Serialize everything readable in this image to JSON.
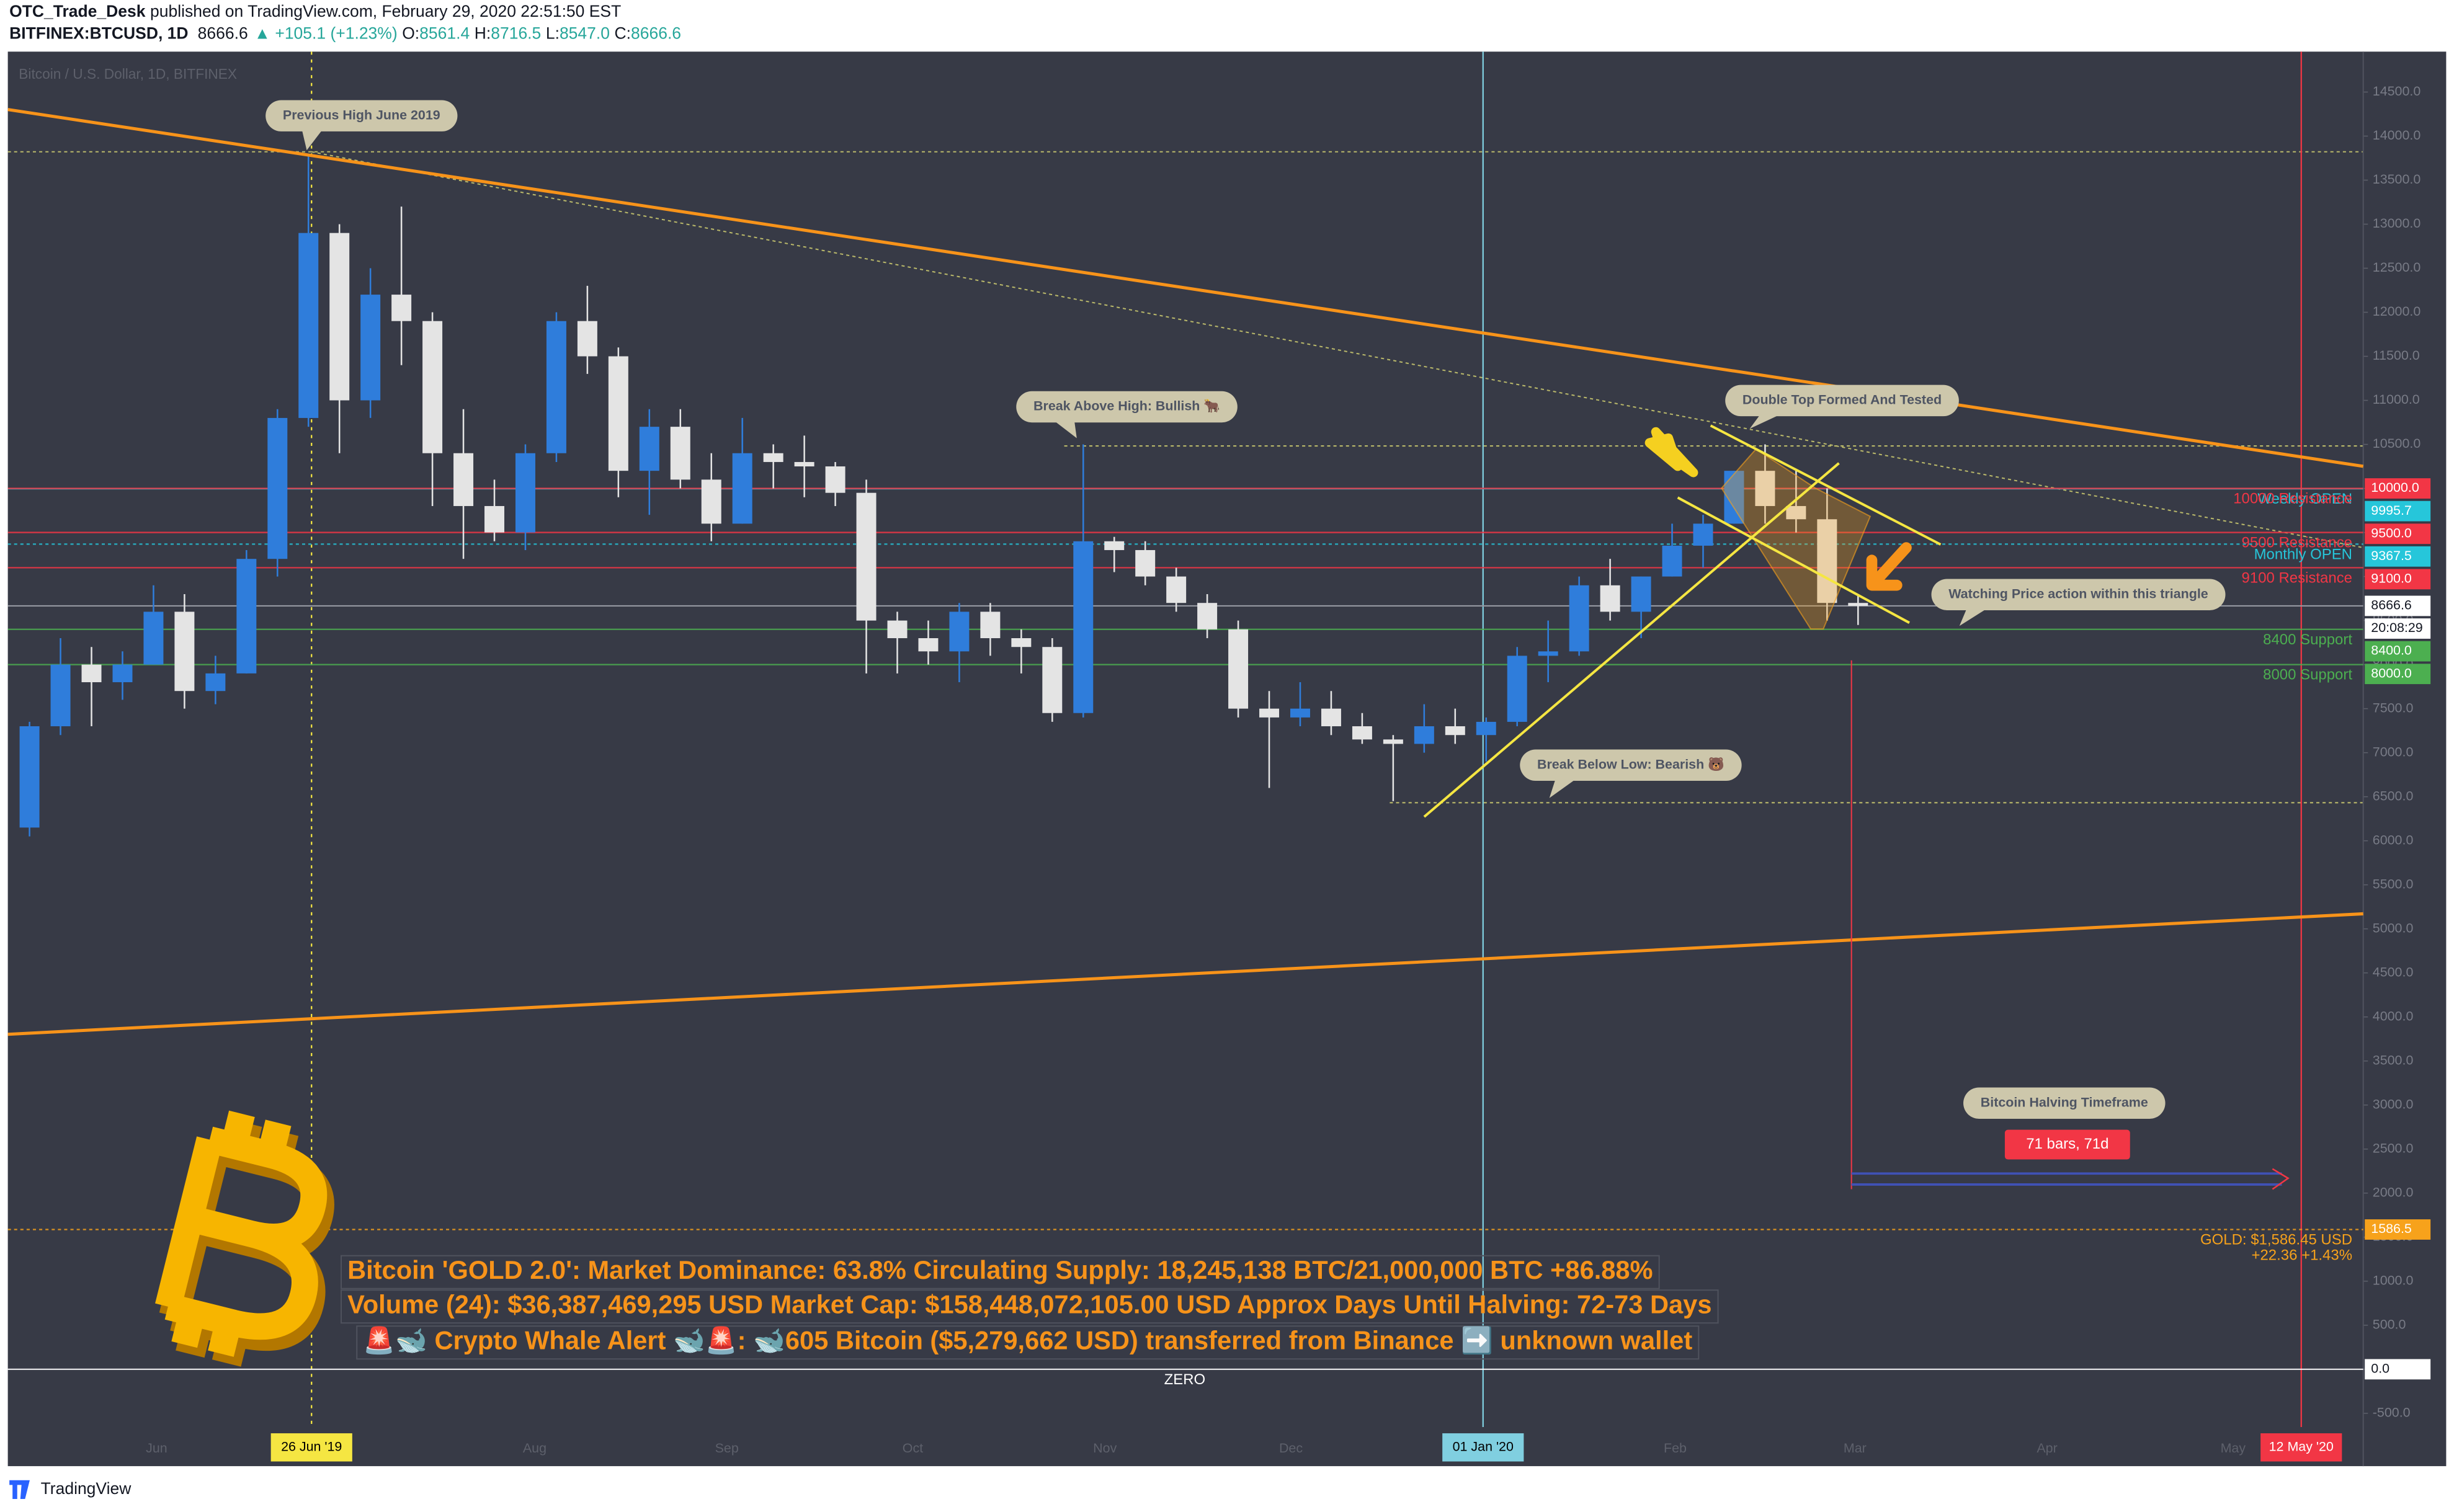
{
  "header": {
    "author": "OTC_Trade_Desk",
    "published": "published on TradingView.com, February 29, 2020 22:51:50 EST",
    "symbol": "BITFINEX:BTCUSD, 1D",
    "last": "8666.6",
    "change": "▲ +105.1 (+1.23%)",
    "ohlc": [
      {
        "label": "O:",
        "value": "8561.4"
      },
      {
        "label": "H:",
        "value": "8716.5"
      },
      {
        "label": "L:",
        "value": "8547.0"
      },
      {
        "label": "C:",
        "value": "8666.6"
      }
    ]
  },
  "chart_data": {
    "type": "candlestick",
    "watermark": "Bitcoin / U.S. Dollar, 1D, BITFINEX",
    "x": [
      "2019-05-09",
      "2019-05-14",
      "2019-05-19",
      "2019-05-24",
      "2019-05-29",
      "2019-06-03",
      "2019-06-08",
      "2019-06-13",
      "2019-06-18",
      "2019-06-23",
      "2019-06-28",
      "2019-07-03",
      "2019-07-08",
      "2019-07-13",
      "2019-07-18",
      "2019-07-23",
      "2019-07-28",
      "2019-08-02",
      "2019-08-07",
      "2019-08-12",
      "2019-08-17",
      "2019-08-22",
      "2019-08-27",
      "2019-09-01",
      "2019-09-06",
      "2019-09-11",
      "2019-09-16",
      "2019-09-21",
      "2019-09-26",
      "2019-10-01",
      "2019-10-06",
      "2019-10-11",
      "2019-10-16",
      "2019-10-21",
      "2019-10-26",
      "2019-10-31",
      "2019-11-05",
      "2019-11-10",
      "2019-11-15",
      "2019-11-20",
      "2019-11-25",
      "2019-11-30",
      "2019-12-05",
      "2019-12-10",
      "2019-12-15",
      "2019-12-20",
      "2019-12-25",
      "2019-12-30",
      "2020-01-04",
      "2020-01-09",
      "2020-01-14",
      "2020-01-19",
      "2020-01-24",
      "2020-01-29",
      "2020-02-03",
      "2020-02-08",
      "2020-02-13",
      "2020-02-18",
      "2020-02-23",
      "2020-02-28"
    ],
    "open": [
      6150,
      7300,
      8000,
      7800,
      8000,
      8600,
      7700,
      7900,
      9200,
      10800,
      12900,
      11000,
      12200,
      11900,
      10400,
      9800,
      9500,
      10400,
      11900,
      11500,
      10200,
      10700,
      10100,
      9600,
      10400,
      10300,
      10250,
      9950,
      8500,
      8300,
      8150,
      8600,
      8300,
      8200,
      7450,
      9400,
      9300,
      9000,
      8700,
      8400,
      7500,
      7400,
      7500,
      7300,
      7150,
      7100,
      7300,
      7200,
      7350,
      8100,
      8150,
      8900,
      8600,
      9000,
      9350,
      9600,
      10200,
      9800,
      9650,
      8700
    ],
    "high": [
      7350,
      8300,
      8200,
      8150,
      8900,
      8800,
      8100,
      9300,
      10900,
      13800,
      13000,
      12500,
      13200,
      12000,
      10900,
      10100,
      10500,
      12000,
      12300,
      11600,
      10900,
      10900,
      10400,
      10800,
      10500,
      10600,
      10300,
      10100,
      8600,
      8500,
      8700,
      8700,
      8400,
      8300,
      10500,
      9450,
      9400,
      9100,
      8800,
      8500,
      7700,
      7800,
      7700,
      7450,
      7200,
      7550,
      7500,
      7400,
      8200,
      8500,
      9000,
      9200,
      9000,
      9600,
      9700,
      10200,
      10500,
      10200,
      10000,
      8800
    ],
    "low": [
      6050,
      7200,
      7300,
      7600,
      8000,
      7500,
      7550,
      7900,
      9000,
      10700,
      10400,
      10800,
      11400,
      9800,
      9200,
      9400,
      9300,
      10300,
      11300,
      9900,
      9700,
      10000,
      9400,
      9600,
      10000,
      9900,
      9800,
      7900,
      7900,
      8000,
      7800,
      8100,
      7900,
      7350,
      7400,
      9050,
      8900,
      8600,
      8300,
      7400,
      6600,
      7300,
      7200,
      7100,
      6450,
      7000,
      7100,
      6900,
      7300,
      7800,
      8100,
      8500,
      8300,
      9000,
      9100,
      9600,
      9600,
      9500,
      8500,
      8450
    ],
    "close": [
      7300,
      8000,
      7800,
      8000,
      8600,
      7700,
      7900,
      9200,
      10800,
      12900,
      11000,
      12200,
      11900,
      10400,
      9800,
      9500,
      10400,
      11900,
      11500,
      10200,
      10700,
      10100,
      9600,
      10400,
      10300,
      10250,
      9950,
      8500,
      8300,
      8150,
      8600,
      8300,
      8200,
      7450,
      9400,
      9300,
      9000,
      8700,
      8400,
      7500,
      7400,
      7500,
      7300,
      7150,
      7100,
      7300,
      7200,
      7350,
      8100,
      8150,
      8900,
      8600,
      9000,
      9350,
      9600,
      10200,
      9800,
      9650,
      8700,
      8666.6
    ],
    "up_color": "#2f7ddb",
    "down_color": "#e4e4e4",
    "xlim": [
      "2019-05-08",
      "2020-05-22"
    ],
    "xticks": [
      {
        "value": "2019-06-01",
        "label": "Jun"
      },
      {
        "value": "2019-08-01",
        "label": "Aug"
      },
      {
        "value": "2019-09-01",
        "label": "Sep"
      },
      {
        "value": "2019-10-01",
        "label": "Oct"
      },
      {
        "value": "2019-11-01",
        "label": "Nov"
      },
      {
        "value": "2019-12-01",
        "label": "Dec"
      },
      {
        "value": "2020-02-01",
        "label": "Feb"
      },
      {
        "value": "2020-03-01",
        "label": "Mar"
      },
      {
        "value": "2020-04-01",
        "label": "Apr"
      },
      {
        "value": "2020-05-01",
        "label": "May"
      }
    ],
    "ylim": [
      -1100,
      14870
    ],
    "yticks": [
      {
        "value": -500,
        "label": "-500.0"
      },
      {
        "value": 0,
        "label": "0.0"
      },
      {
        "value": 500,
        "label": "500.0"
      },
      {
        "value": 1000,
        "label": "1000.0"
      },
      {
        "value": 1500,
        "label": "1500.0"
      },
      {
        "value": 2000,
        "label": "2000.0"
      },
      {
        "value": 2500,
        "label": "2500.0"
      },
      {
        "value": 3000,
        "label": "3000.0"
      },
      {
        "value": 3500,
        "label": "3500.0"
      },
      {
        "value": 4000,
        "label": "4000.0"
      },
      {
        "value": 4500,
        "label": "4500.0"
      },
      {
        "value": 5000,
        "label": "5000.0"
      },
      {
        "value": 5500,
        "label": "5500.0"
      },
      {
        "value": 6000,
        "label": "6000.0"
      },
      {
        "value": 6500,
        "label": "6500.0"
      },
      {
        "value": 7000,
        "label": "7000.0"
      },
      {
        "value": 7500,
        "label": "7500.0"
      },
      {
        "value": 8000,
        "label": "8000.0"
      },
      {
        "value": 8500,
        "label": "8500.0"
      },
      {
        "value": 9000,
        "label": "9000.0"
      },
      {
        "value": 9500,
        "label": "9500.0"
      },
      {
        "value": 10000,
        "label": "10000.0"
      },
      {
        "value": 10500,
        "label": "10500.0"
      },
      {
        "value": 11000,
        "label": "11000.0"
      },
      {
        "value": 11500,
        "label": "11500.0"
      },
      {
        "value": 12000,
        "label": "12000.0"
      },
      {
        "value": 12500,
        "label": "12500.0"
      },
      {
        "value": 13000,
        "label": "13000.0"
      },
      {
        "value": 13500,
        "label": "13500.0"
      },
      {
        "value": 14000,
        "label": "14000.0"
      },
      {
        "value": 14500,
        "label": "14500.0"
      }
    ],
    "levels": [
      {
        "name": "Weekly OPEN",
        "value": 9995.7,
        "label": "9995.7",
        "color": "#26c6da",
        "dash": false
      },
      {
        "name": "10000 Resistance",
        "value": 10000,
        "label": "10000.0",
        "color": "#f23645",
        "dash": false
      },
      {
        "name": "9500 Resistance",
        "value": 9500,
        "label": "9500.0",
        "color": "#f23645",
        "dash": false
      },
      {
        "name": "Monthly OPEN",
        "value": 9367.5,
        "label": "9367.5",
        "color": "#26c6da",
        "dash": true
      },
      {
        "name": "9100 Resistance",
        "value": 9100,
        "label": "9100.0",
        "color": "#f23645",
        "dash": false
      },
      {
        "name": "8400 Support",
        "value": 8400,
        "label": "8400.0",
        "color": "#4caf50",
        "dash": false
      },
      {
        "name": "8000 Support",
        "value": 8000,
        "label": "8000.0",
        "color": "#4caf50",
        "dash": false
      },
      {
        "name": "GOLD: $1,586.45 USD",
        "note": "+22.36 +1.43%",
        "value": 1586.5,
        "label": "1586.5",
        "color": "#f7a21b",
        "dash": true
      },
      {
        "name": "ZERO",
        "value": 0,
        "label": "0.0",
        "color": "#ffffff",
        "dash": false,
        "align": "center"
      }
    ],
    "price": {
      "value": 8666.6,
      "label": "8666.6",
      "countdown": "20:08:29",
      "color": "#9598a1"
    },
    "markers": [
      {
        "date": "2019-06-26",
        "label": "26 Jun '19",
        "color": "#f5e642",
        "text_color": "#000000",
        "dash": true
      },
      {
        "date": "2020-01-01",
        "label": "01 Jan '20",
        "color": "#80cfe0",
        "text_color": "#000000",
        "dash": false
      },
      {
        "date": "2020-05-12",
        "label": "12 May '20",
        "color": "#f23645",
        "text_color": "#ffffff",
        "dash": false
      }
    ]
  },
  "annotations": [
    "Previous High June 2019",
    "Break Above High: Bullish 🐂",
    "Double Top Formed And Tested",
    "Watching Price action within this triangle",
    "Break Below Low: Bearish 🐻",
    "Bitcoin Halving Timeframe"
  ],
  "halving_range": "71 bars, 71d",
  "info_lines": [
    "Bitcoin 'GOLD 2.0': Market Dominance: 63.8%  Circulating Supply: 18,245,138 BTC/21,000,000 BTC +86.88%",
    "Volume (24): $36,387,469,295 USD  Market Cap: $158,448,072,105.00 USD Approx Days Until Halving: 72-73 Days",
    "🚨🐋 Crypto Whale Alert 🐋🚨: 🐋605 Bitcoin ($5,279,662 USD) transferred from Binance ➡️ unknown wallet"
  ],
  "footer": {
    "brand": "TradingView"
  }
}
